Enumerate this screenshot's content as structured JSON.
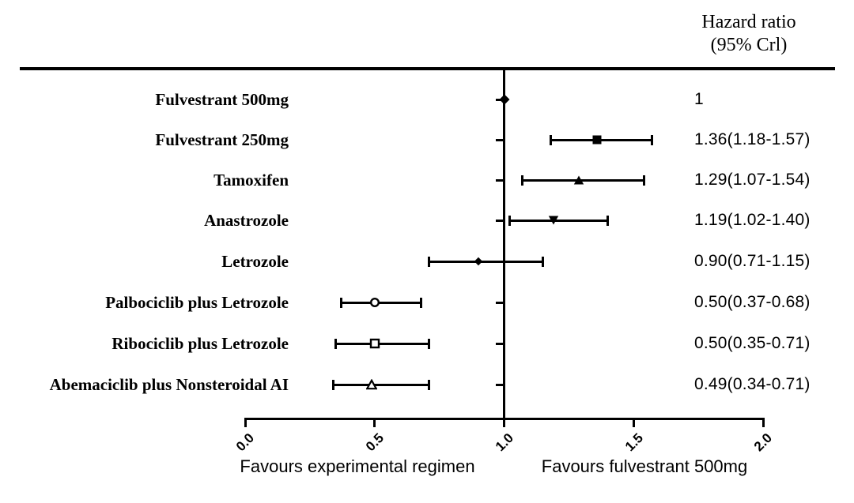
{
  "header": {
    "line1": "Hazard ratio",
    "line2": "(95% Crl)"
  },
  "footer": {
    "favours_left": "Favours experimental regimen",
    "favours_right": "Favours fulvestrant 500mg"
  },
  "chart_data": {
    "type": "forest",
    "title": "Hazard ratio (95% Crl)",
    "x_axis": {
      "range": [
        0.0,
        2.0
      ],
      "ticks": [
        0.0,
        0.5,
        1.0,
        1.5,
        2.0
      ],
      "tick_labels": [
        "0.0",
        "0.5",
        "1.0",
        "1.5",
        "2.0"
      ],
      "reference_line": 1.0
    },
    "legend_position": "none",
    "grid": false,
    "rows": [
      {
        "label": "Fulvestrant 500mg",
        "hr": 1.0,
        "ci_low": null,
        "ci_high": null,
        "value_text": "1",
        "marker": "diamond-filled"
      },
      {
        "label": "Fulvestrant 250mg",
        "hr": 1.36,
        "ci_low": 1.18,
        "ci_high": 1.57,
        "value_text": "1.36(1.18-1.57)",
        "marker": "square-filled"
      },
      {
        "label": "Tamoxifen",
        "hr": 1.29,
        "ci_low": 1.07,
        "ci_high": 1.54,
        "value_text": "1.29(1.07-1.54)",
        "marker": "triangle-up-filled"
      },
      {
        "label": "Anastrozole",
        "hr": 1.19,
        "ci_low": 1.02,
        "ci_high": 1.4,
        "value_text": "1.19(1.02-1.40)",
        "marker": "triangle-down-filled"
      },
      {
        "label": "Letrozole",
        "hr": 0.9,
        "ci_low": 0.71,
        "ci_high": 1.15,
        "value_text": "0.90(0.71-1.15)",
        "marker": "diamond-filled-small"
      },
      {
        "label": "Palbociclib plus Letrozole",
        "hr": 0.5,
        "ci_low": 0.37,
        "ci_high": 0.68,
        "value_text": "0.50(0.37-0.68)",
        "marker": "circle-open"
      },
      {
        "label": "Ribociclib plus Letrozole",
        "hr": 0.5,
        "ci_low": 0.35,
        "ci_high": 0.71,
        "value_text": "0.50(0.35-0.71)",
        "marker": "square-open"
      },
      {
        "label": "Abemaciclib plus Nonsteroidal AI",
        "hr": 0.49,
        "ci_low": 0.34,
        "ci_high": 0.71,
        "value_text": "0.49(0.34-0.71)",
        "marker": "triangle-up-open"
      }
    ],
    "colors": {
      "ink": "#000000",
      "background": "#ffffff"
    }
  }
}
